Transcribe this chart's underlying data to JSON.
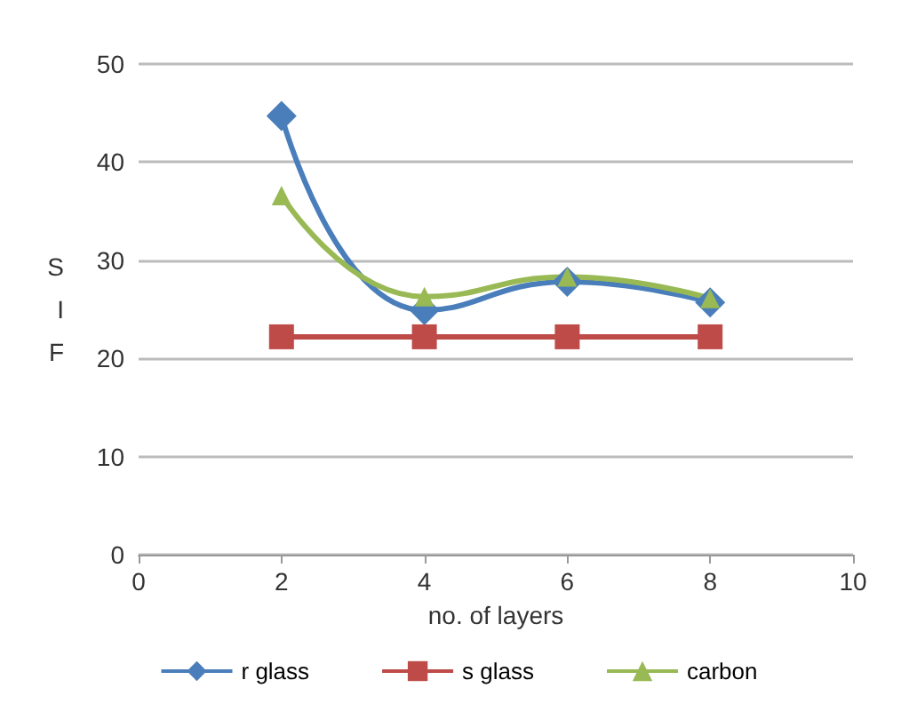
{
  "chart_data": {
    "type": "line",
    "xlabel": "no. of layers",
    "ylabel": "SIF",
    "x": [
      2,
      4,
      6,
      8
    ],
    "series": [
      {
        "name": "r glass",
        "color": "#4a7ebb",
        "marker": "diamond",
        "values": [
          44.7,
          24.9,
          27.8,
          25.7
        ]
      },
      {
        "name": "s glass",
        "color": "#be4b48",
        "marker": "square",
        "values": [
          22.2,
          22.2,
          22.2,
          22.2
        ]
      },
      {
        "name": "carbon",
        "color": "#98b954",
        "marker": "triangle",
        "values": [
          36.6,
          26.3,
          28.3,
          26.1
        ]
      }
    ],
    "xlim": [
      0,
      10
    ],
    "xticks": [
      0,
      2,
      4,
      6,
      8,
      10
    ],
    "ylim": [
      0,
      50
    ],
    "yticks": [
      0,
      10,
      20,
      30,
      40,
      50
    ],
    "grid": "y",
    "legend": "bottom"
  }
}
